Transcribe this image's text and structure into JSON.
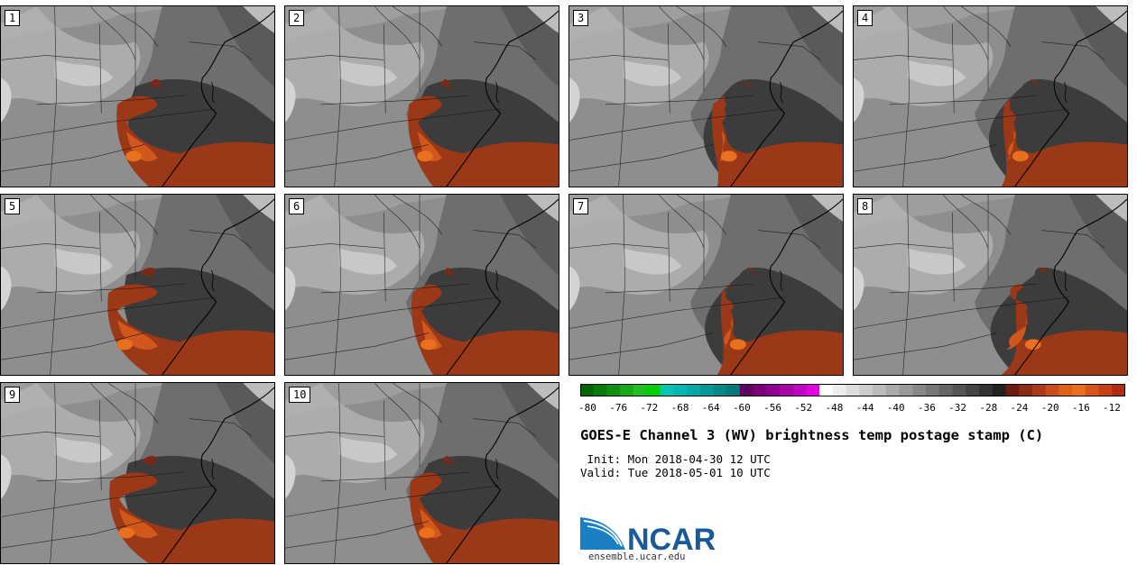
{
  "panels": [
    {
      "label": "1"
    },
    {
      "label": "2"
    },
    {
      "label": "3"
    },
    {
      "label": "4"
    },
    {
      "label": "5"
    },
    {
      "label": "6"
    },
    {
      "label": "7"
    },
    {
      "label": "8"
    },
    {
      "label": "9"
    },
    {
      "label": "10"
    }
  ],
  "colorbar": {
    "ticks": [
      "-80",
      "-76",
      "-72",
      "-68",
      "-64",
      "-60",
      "-56",
      "-52",
      "-48",
      "-44",
      "-40",
      "-36",
      "-32",
      "-28",
      "-24",
      "-20",
      "-16",
      "-12"
    ],
    "colors": [
      "#006400",
      "#0a7a0a",
      "#109010",
      "#18a818",
      "#20c020",
      "#00d000",
      "#00c8b0",
      "#00b8b8",
      "#00a8a8",
      "#009898",
      "#008888",
      "#007878",
      "#600060",
      "#780078",
      "#900090",
      "#a800a8",
      "#c000c0",
      "#e000e0",
      "#ffffff",
      "#eeeeee",
      "#dddddd",
      "#cccccc",
      "#bbbbbb",
      "#aaaaaa",
      "#999999",
      "#888888",
      "#777777",
      "#666666",
      "#555555",
      "#444444",
      "#333333",
      "#222222",
      "#6a1c10",
      "#8a2c14",
      "#a83a18",
      "#c84c1c",
      "#e06018",
      "#e87020",
      "#d85418",
      "#c8401a",
      "#b02c10"
    ]
  },
  "title": "GOES-E Channel 3 (WV) brightness temp postage stamp (C)",
  "init_line": " Init: Mon 2018-04-30 12 UTC",
  "valid_line": "Valid: Tue 2018-05-01 10 UTC",
  "logo_text": "NCAR",
  "site": "ensemble.ucar.edu"
}
